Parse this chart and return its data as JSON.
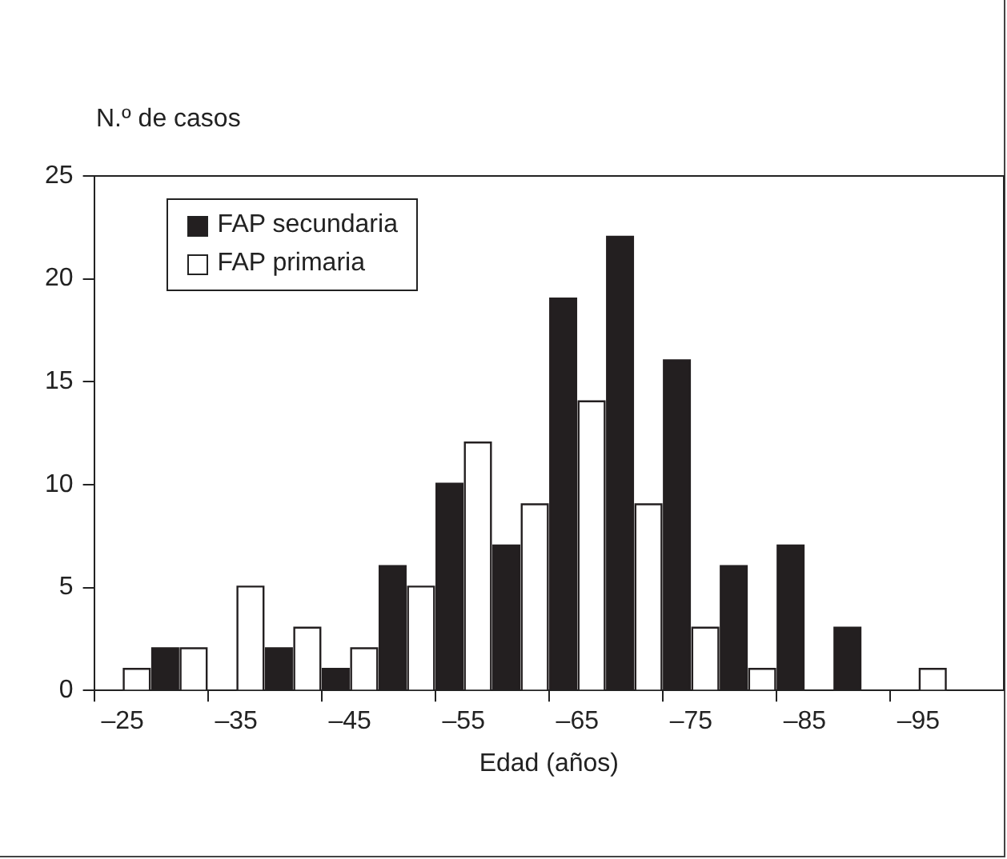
{
  "chart_data": {
    "type": "bar",
    "ylabel": "N.º de casos",
    "xlabel": "Edad (años)",
    "categories": [
      "–25",
      null,
      "–35",
      null,
      "–45",
      null,
      "–55",
      null,
      "–65",
      null,
      "–75",
      null,
      "–85",
      null,
      "–95",
      null
    ],
    "series": [
      {
        "name": "FAP secundaria",
        "color": "#231f20",
        "values": [
          null,
          2,
          null,
          2,
          1,
          6,
          10,
          7,
          19,
          22,
          16,
          6,
          7,
          3,
          null,
          null
        ]
      },
      {
        "name": "FAP primaria",
        "color": "#ffffff",
        "values": [
          1,
          2,
          5,
          3,
          2,
          5,
          12,
          9,
          14,
          9,
          3,
          1,
          null,
          null,
          1,
          null
        ]
      }
    ],
    "ylim": [
      0,
      25
    ],
    "yticks": [
      0,
      5,
      10,
      15,
      20,
      25
    ],
    "grid": false,
    "legend": "top left"
  }
}
